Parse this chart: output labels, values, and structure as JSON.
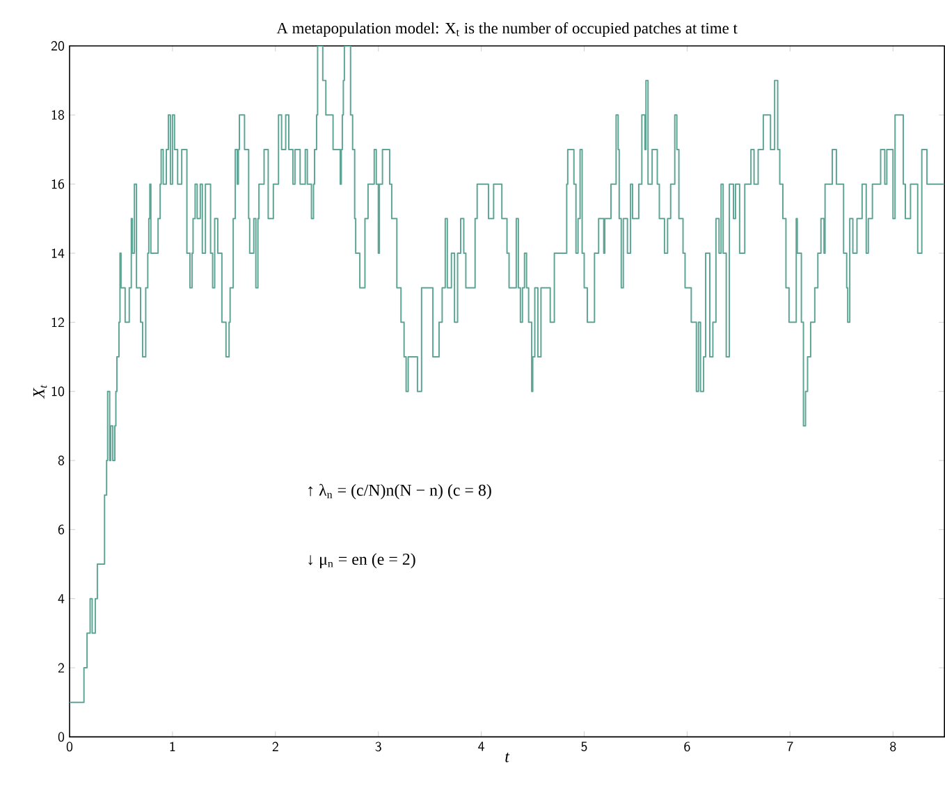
{
  "chart_data": {
    "type": "step",
    "title": "A metapopulation model: X$_{t}$ is the number of occupied patches at time t",
    "xlabel": "t",
    "ylabel": "X$_{t}$",
    "annotations": [
      "↑   λ$_{n}$ = (c/N)n(N − n)    (c = 8)",
      "↓   μ$_{n}$ = en    (e = 2)"
    ],
    "xlim": [
      0,
      8.5
    ],
    "ylim": [
      0,
      20
    ],
    "xticks": [
      0,
      1,
      2,
      3,
      4,
      5,
      6,
      7,
      8
    ],
    "yticks": [
      0,
      2,
      4,
      6,
      8,
      10,
      12,
      14,
      16,
      18,
      20
    ],
    "grid": false,
    "marker": "none",
    "line_style": "solid",
    "series": [
      {
        "color": "#5fa595",
        "x": [
          0,
          0.14,
          0.17,
          0.2,
          0.22,
          0.25,
          0.27,
          0.34,
          0.36,
          0.37,
          0.39,
          0.4,
          0.42,
          0.44,
          0.45,
          0.46,
          0.48,
          0.49,
          0.5,
          0.54,
          0.58,
          0.6,
          0.61,
          0.63,
          0.65,
          0.69,
          0.71,
          0.74,
          0.76,
          0.77,
          0.78,
          0.79,
          0.86,
          0.88,
          0.89,
          0.91,
          0.94,
          0.96,
          0.98,
          1.0,
          1.02,
          1.05,
          1.09,
          1.14,
          1.17,
          1.19,
          1.2,
          1.22,
          1.24,
          1.27,
          1.29,
          1.32,
          1.37,
          1.39,
          1.41,
          1.44,
          1.48,
          1.52,
          1.55,
          1.56,
          1.59,
          1.61,
          1.63,
          1.64,
          1.65,
          1.7,
          1.74,
          1.75,
          1.79,
          1.81,
          1.83,
          1.84,
          1.89,
          1.93,
          1.98,
          2.03,
          2.06,
          2.1,
          2.13,
          2.17,
          2.19,
          2.24,
          2.29,
          2.31,
          2.35,
          2.37,
          2.38,
          2.4,
          2.41,
          2.46,
          2.49,
          2.56,
          2.63,
          2.64,
          2.65,
          2.66,
          2.67,
          2.73,
          2.75,
          2.77,
          2.78,
          2.82,
          2.87,
          2.9,
          2.96,
          2.98,
          3.0,
          3.01,
          3.04,
          3.11,
          3.13,
          3.18,
          3.22,
          3.25,
          3.27,
          3.29,
          3.38,
          3.42,
          3.53,
          3.59,
          3.62,
          3.65,
          3.67,
          3.71,
          3.74,
          3.77,
          3.8,
          3.83,
          3.85,
          3.94,
          3.96,
          4.07,
          4.12,
          4.2,
          4.25,
          4.27,
          4.34,
          4.36,
          4.38,
          4.4,
          4.42,
          4.44,
          4.46,
          4.49,
          4.5,
          4.52,
          4.55,
          4.58,
          4.67,
          4.71,
          4.83,
          4.84,
          4.9,
          4.92,
          4.94,
          4.96,
          4.98,
          5.0,
          5.03,
          5.1,
          5.14,
          5.19,
          5.2,
          5.26,
          5.31,
          5.33,
          5.34,
          5.36,
          5.38,
          5.42,
          5.45,
          5.47,
          5.53,
          5.56,
          5.59,
          5.6,
          5.62,
          5.66,
          5.71,
          5.73,
          5.78,
          5.81,
          5.84,
          5.88,
          5.9,
          5.92,
          5.96,
          5.98,
          6.04,
          6.09,
          6.11,
          6.13,
          6.16,
          6.18,
          6.22,
          6.25,
          6.28,
          6.31,
          6.33,
          6.35,
          6.38,
          6.41,
          6.45,
          6.47,
          6.51,
          6.56,
          6.62,
          6.65,
          6.69,
          6.74,
          6.81,
          6.85,
          6.88,
          6.9,
          6.93,
          6.96,
          6.99,
          7.06,
          7.07,
          7.11,
          7.13,
          7.15,
          7.17,
          7.2,
          7.24,
          7.27,
          7.3,
          7.33,
          7.34,
          7.41,
          7.45,
          7.52,
          7.55,
          7.56,
          7.58,
          7.61,
          7.65,
          7.7,
          7.74,
          7.76,
          7.8,
          7.88,
          7.92,
          7.94,
          8.0,
          8.02,
          8.1,
          8.12,
          8.17,
          8.24,
          8.28,
          8.33,
          8.5
        ],
        "values": [
          1,
          2,
          3,
          4,
          3,
          4,
          5,
          7,
          8,
          10,
          8,
          9,
          8,
          9,
          10,
          11,
          12,
          14,
          13,
          12,
          13,
          15,
          14,
          16,
          13,
          12,
          11,
          13,
          14,
          15,
          16,
          14,
          15,
          16,
          17,
          16,
          17,
          18,
          16,
          18,
          17,
          16,
          17,
          14,
          13,
          14,
          15,
          16,
          15,
          16,
          14,
          16,
          14,
          13,
          15,
          14,
          12,
          11,
          12,
          13,
          15,
          17,
          16,
          17,
          18,
          17,
          15,
          14,
          15,
          13,
          15,
          16,
          17,
          15,
          16,
          18,
          17,
          18,
          17,
          16,
          17,
          16,
          17,
          16,
          15,
          16,
          17,
          18,
          20,
          19,
          18,
          17,
          16,
          17,
          18,
          19,
          20,
          18,
          17,
          15,
          14,
          13,
          15,
          16,
          17,
          16,
          14,
          16,
          17,
          16,
          15,
          13,
          12,
          11,
          10,
          11,
          10,
          13,
          11,
          12,
          13,
          15,
          13,
          14,
          12,
          14,
          15,
          14,
          13,
          15,
          16,
          15,
          16,
          15,
          14,
          13,
          15,
          13,
          12,
          13,
          14,
          13,
          12,
          10,
          11,
          13,
          11,
          13,
          12,
          14,
          16,
          17,
          16,
          14,
          15,
          17,
          14,
          13,
          12,
          14,
          15,
          14,
          15,
          16,
          18,
          17,
          15,
          13,
          15,
          14,
          16,
          15,
          16,
          18,
          17,
          19,
          16,
          17,
          16,
          15,
          14,
          15,
          16,
          18,
          17,
          15,
          14,
          13,
          12,
          10,
          12,
          10,
          11,
          14,
          11,
          12,
          15,
          14,
          16,
          14,
          11,
          16,
          15,
          16,
          14,
          16,
          17,
          16,
          17,
          18,
          17,
          19,
          17,
          16,
          15,
          13,
          12,
          15,
          14,
          12,
          9,
          10,
          11,
          12,
          13,
          14,
          15,
          14,
          16,
          17,
          16,
          14,
          13,
          12,
          15,
          14,
          15,
          16,
          14,
          15,
          16,
          17,
          16,
          17,
          15,
          18,
          16,
          15,
          16,
          14,
          17,
          16,
          16
        ]
      }
    ]
  }
}
